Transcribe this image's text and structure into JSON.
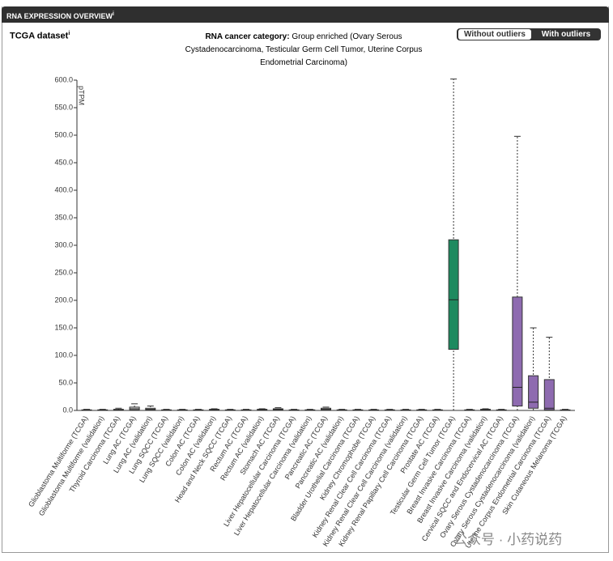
{
  "header": {
    "title": "RNA EXPRESSION OVERVIEW",
    "info": "i"
  },
  "dataset": "TCGA dataset",
  "subtitle_label": "RNA cancer category:",
  "subtitle_lines": [
    "Group enriched (Ovary Serous",
    "Cystadenocarcinoma, Testicular Germ Cell Tumor, Uterine Corpus",
    "Endometrial Carcinoma)"
  ],
  "toggle": [
    "Without outliers",
    "With outliers"
  ],
  "watermark": "公众号 · 小药说药",
  "chart_data": {
    "type": "box",
    "y_label": "pTPM",
    "categories": [
      "Glioblastoma Multiforme (TCGA)",
      "Glioblastoma Multiforme (validation)",
      "Thyroid Carcinoma (TCGA)",
      "Lung AC (TCGA)",
      "Lung AC (validation)",
      "Lung SQCC (TCGA)",
      "Lung SQCC (validation)",
      "Colon AC (TCGA)",
      "Colon AC (validation)",
      "Head and Neck SQCC (TCGA)",
      "Rectum AC (TCGA)",
      "Rectum AC (validation)",
      "Stomach AC (TCGA)",
      "Liver Hepatocellular Carcinoma (TCGA)",
      "Liver Hepatocellular Carcinoma (validation)",
      "Pancreatic AC (TCGA)",
      "Pancreatic AC (validation)",
      "Bladder Urothelial Carcinoma (TCGA)",
      "Kidney Chromophobe (TCGA)",
      "Kidney Renal Clear Cell Carcinoma (TCGA)",
      "Kidney Renal Clear Cell Carcinoma (validation)",
      "Kidney Renal Papillary Cell Carcinoma (TCGA)",
      "Prostate AC (TCGA)",
      "Testicular Germ Cell Tumor (TCGA)",
      "Breast Invasive Carcinoma (TCGA)",
      "Breast Invasive Carcinoma (validation)",
      "Cervical SQCC and Endocervical AC (TCGA)",
      "Ovary Serous Cystadenocarcinoma (TCGA)",
      "Ovary Serous Cystadenocarcinoma (validation)",
      "Uterine Corpus Endometrial Carcinoma (TCGA)",
      "Skin Cutaneous Melanoma (TCGA)"
    ],
    "min": [
      0,
      0,
      0,
      0,
      0,
      0,
      0,
      0,
      0,
      0,
      0,
      0,
      0,
      0,
      0,
      0,
      0,
      0,
      0,
      0,
      0,
      0,
      0,
      0,
      0,
      0,
      0,
      0,
      0,
      0,
      0
    ],
    "q1": [
      0,
      0,
      0.5,
      1,
      1,
      0,
      0,
      0,
      0.5,
      0,
      0,
      0.5,
      0.5,
      0,
      0,
      1,
      0,
      0,
      0,
      0,
      0,
      0,
      0,
      111,
      0,
      0.5,
      0,
      8,
      4,
      1,
      0
    ],
    "median": [
      0.5,
      0.5,
      1,
      3,
      2,
      0.5,
      0.5,
      0.5,
      1,
      0.5,
      0.5,
      1,
      1.5,
      0.5,
      0.5,
      2,
      0.5,
      0.5,
      0.5,
      0.5,
      0.5,
      0.5,
      0.5,
      201,
      0.5,
      1,
      0.5,
      42,
      15,
      4,
      0.5
    ],
    "q3": [
      1,
      1,
      2,
      6,
      4,
      1,
      1,
      1,
      2,
      1,
      1,
      2,
      3,
      1,
      1,
      4,
      1,
      1,
      1,
      1,
      1,
      1,
      1,
      310,
      1,
      2,
      1,
      206,
      63,
      56,
      1
    ],
    "max": [
      2,
      2,
      4,
      12,
      8,
      2,
      2,
      2,
      3,
      2,
      2,
      3,
      5,
      2,
      2,
      6,
      2,
      2,
      2,
      2,
      2,
      2,
      2,
      602,
      2,
      3,
      2,
      498,
      150,
      133,
      2
    ],
    "colors": [
      "#d9d9d9",
      "#d9d9d9",
      "#d9d9d9",
      "#d9d9d9",
      "#d9d9d9",
      "#d9d9d9",
      "#d9d9d9",
      "#d9d9d9",
      "#d9d9d9",
      "#d9d9d9",
      "#d9d9d9",
      "#d9d9d9",
      "#d9d9d9",
      "#d9d9d9",
      "#d9d9d9",
      "#d9d9d9",
      "#d9d9d9",
      "#d9d9d9",
      "#d9d9d9",
      "#d9d9d9",
      "#d9d9d9",
      "#d9d9d9",
      "#d9d9d9",
      "#1e8a5f",
      "#d9d9d9",
      "#d9d9d9",
      "#d9d9d9",
      "#8e6bb0",
      "#8e6bb0",
      "#8e6bb0",
      "#d9d9d9"
    ],
    "ylim": [
      0,
      600
    ],
    "yticks": [
      {
        "value": 0,
        "label": "0.0"
      },
      {
        "value": 50,
        "label": "50.0"
      },
      {
        "value": 100,
        "label": "100.0"
      },
      {
        "value": 150,
        "label": "150.0"
      },
      {
        "value": 200,
        "label": "200.0"
      },
      {
        "value": 250,
        "label": "250.0"
      },
      {
        "value": 300,
        "label": "300.0"
      },
      {
        "value": 350,
        "label": "350.0"
      },
      {
        "value": 400,
        "label": "400.0"
      },
      {
        "value": 450,
        "label": "450.0"
      },
      {
        "value": 500,
        "label": "500.0"
      },
      {
        "value": 550,
        "label": "550.0"
      },
      {
        "value": 600,
        "label": "600.0"
      }
    ]
  }
}
